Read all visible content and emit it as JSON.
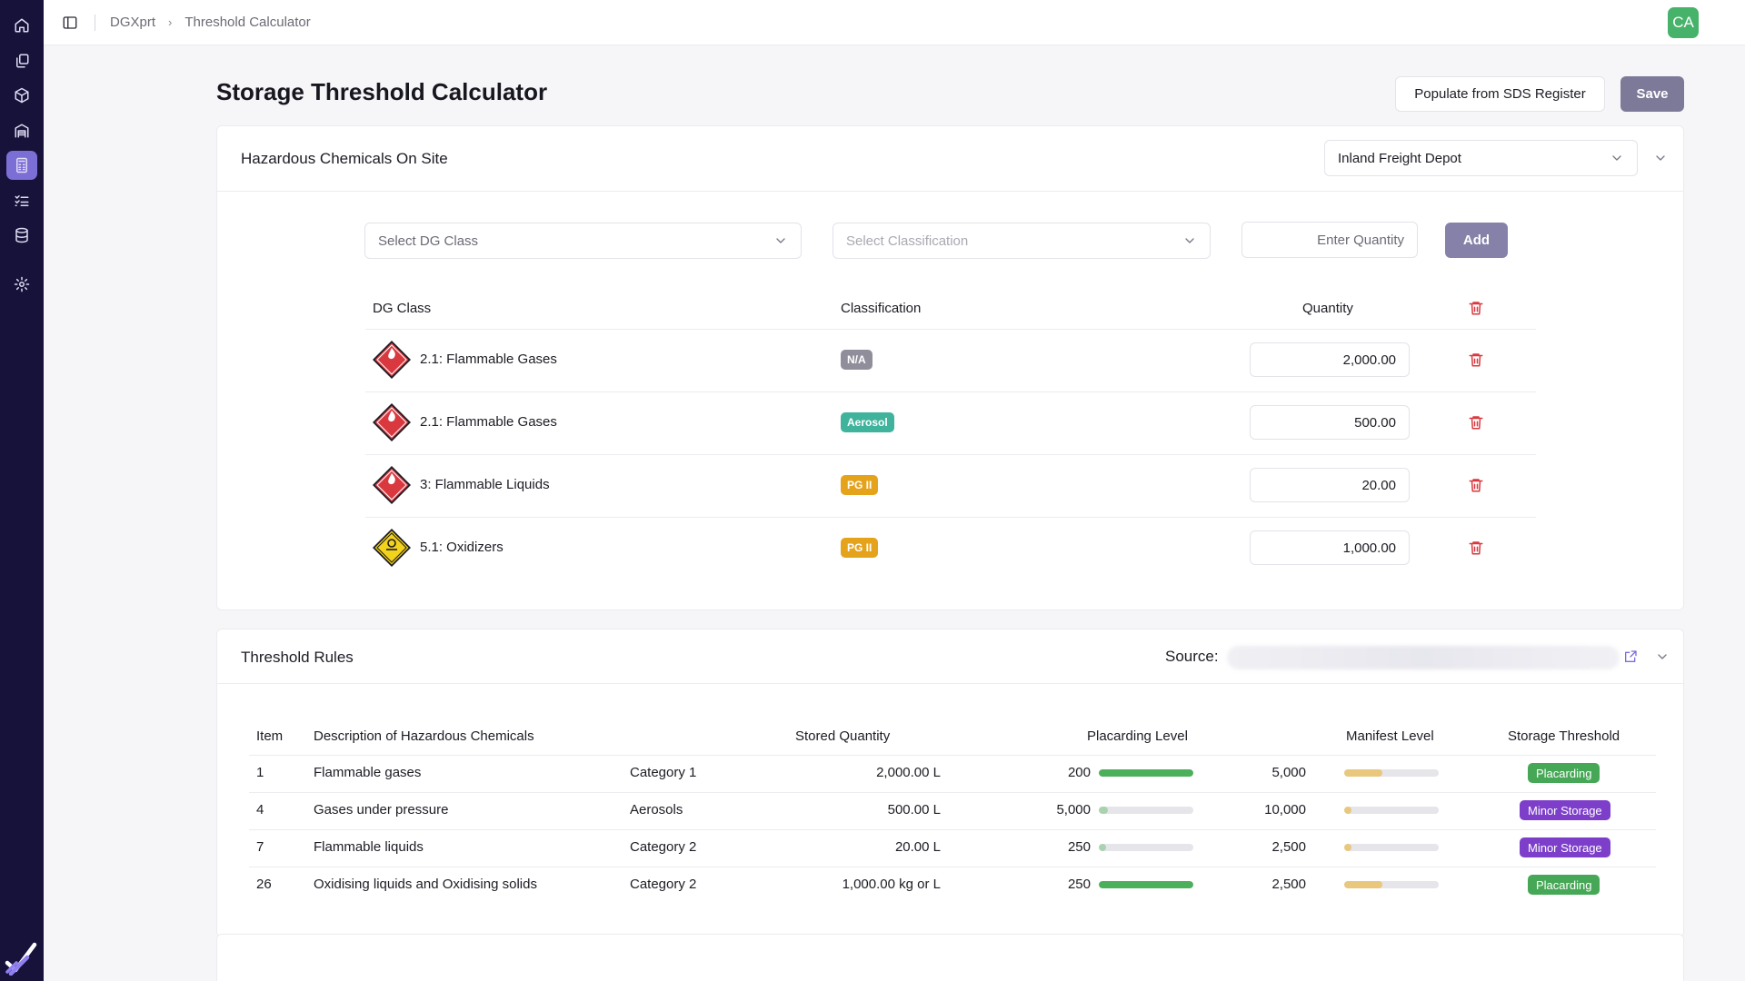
{
  "breadcrumb": [
    "DGXprt",
    "Threshold Calculator"
  ],
  "user": {
    "initials": "CA"
  },
  "page": {
    "title": "Storage Threshold Calculator",
    "populate_label": "Populate from SDS Register",
    "save_label": "Save"
  },
  "chemicals": {
    "title": "Hazardous Chemicals On Site",
    "site": "Inland Freight Depot",
    "dg_class_placeholder": "Select DG Class",
    "classification_placeholder": "Select Classification",
    "quantity_placeholder": "Enter Quantity",
    "add_label": "Add",
    "headers": {
      "dg_class": "DG Class",
      "classification": "Classification",
      "quantity": "Quantity"
    },
    "rows": [
      {
        "dg_class": "2.1: Flammable Gases",
        "classification": "N/A",
        "badge_color": "#8f8e9a",
        "quantity": "2,000.00",
        "icon": "flammable-gas-placard-icon",
        "icon_color": "#d9383f"
      },
      {
        "dg_class": "2.1: Flammable Gases",
        "classification": "Aerosol",
        "badge_color": "#3fb39c",
        "quantity": "500.00",
        "icon": "flammable-gas-placard-icon",
        "icon_color": "#d9383f"
      },
      {
        "dg_class": "3: Flammable Liquids",
        "classification": "PG II",
        "badge_color": "#e5a21b",
        "quantity": "20.00",
        "icon": "flammable-liquid-placard-icon",
        "icon_color": "#d9383f"
      },
      {
        "dg_class": "5.1: Oxidizers",
        "classification": "PG II",
        "badge_color": "#e5a21b",
        "quantity": "1,000.00",
        "icon": "oxidizer-placard-icon",
        "icon_color": "#f2d21b"
      }
    ]
  },
  "rules": {
    "title": "Threshold Rules",
    "source_label": "Source:",
    "headers": {
      "item": "Item",
      "description": "Description of Hazardous Chemicals",
      "stored": "Stored Quantity",
      "placarding": "Placarding Level",
      "manifest": "Manifest Level",
      "threshold": "Storage Threshold"
    },
    "rows": [
      {
        "item": "1",
        "description": "Flammable gases",
        "category": "Category 1",
        "stored": "2,000.00 L",
        "placarding": "200",
        "placarding_fill": 1.0,
        "placarding_color": "#4caf5a",
        "manifest": "5,000",
        "manifest_fill": 0.4,
        "threshold": "Placarding",
        "threshold_color": "#46a856"
      },
      {
        "item": "4",
        "description": "Gases under pressure",
        "category": "Aerosols",
        "stored": "500.00 L",
        "placarding": "5,000",
        "placarding_fill": 0.1,
        "placarding_color": "#a8d3ae",
        "manifest": "10,000",
        "manifest_fill": 0.05,
        "threshold": "Minor Storage",
        "threshold_color": "#7d3fc9"
      },
      {
        "item": "7",
        "description": "Flammable liquids",
        "category": "Category 2",
        "stored": "20.00 L",
        "placarding": "250",
        "placarding_fill": 0.08,
        "placarding_color": "#a8d3ae",
        "manifest": "2,500",
        "manifest_fill": 0.01,
        "threshold": "Minor Storage",
        "threshold_color": "#7d3fc9"
      },
      {
        "item": "26",
        "description": "Oxidising liquids and Oxidising solids",
        "category": "Category 2",
        "stored": "1,000.00 kg or L",
        "placarding": "250",
        "placarding_fill": 1.0,
        "placarding_color": "#4caf5a",
        "manifest": "2,500",
        "manifest_fill": 0.4,
        "threshold": "Placarding",
        "threshold_color": "#46a856"
      }
    ],
    "manifest_color": "#e9c77d"
  }
}
